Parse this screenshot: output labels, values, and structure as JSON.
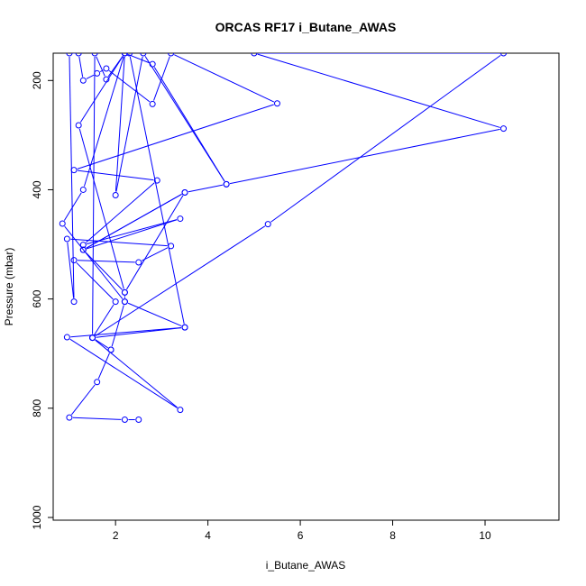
{
  "chart_data": {
    "type": "line",
    "title": "ORCAS RF17 i_Butane_AWAS",
    "xlabel": "i_Butane_AWAS",
    "ylabel": "Pressure (mbar)",
    "xlim": [
      0.65,
      11.6
    ],
    "ylim": [
      1005,
      150
    ],
    "y_reversed": true,
    "x_ticks": [
      2,
      4,
      6,
      8,
      10
    ],
    "y_ticks": [
      200,
      400,
      600,
      800,
      1000
    ],
    "grid": false,
    "legend": "none",
    "color": "#0000ff",
    "marker": "open-circle",
    "series": [
      {
        "points": [
          [
            2.5,
            821
          ],
          [
            2.2,
            821
          ],
          [
            1.0,
            817
          ],
          [
            1.6,
            752
          ],
          [
            1.9,
            693
          ],
          [
            1.5,
            671
          ],
          [
            3.5,
            652
          ],
          [
            0.95,
            670
          ],
          [
            3.4,
            803
          ],
          [
            1.5,
            671
          ],
          [
            5.3,
            463
          ],
          [
            10.4,
            150
          ],
          [
            5.0,
            150
          ],
          [
            10.4,
            288
          ],
          [
            4.4,
            390
          ],
          [
            3.5,
            405
          ],
          [
            1.3,
            510
          ],
          [
            3.4,
            453
          ],
          [
            1.3,
            501
          ],
          [
            2.9,
            383
          ],
          [
            1.1,
            364
          ],
          [
            5.5,
            242
          ],
          [
            3.2,
            150
          ],
          [
            2.8,
            243
          ],
          [
            1.8,
            178
          ],
          [
            1.6,
            187
          ],
          [
            1.3,
            200
          ],
          [
            1.2,
            150
          ],
          [
            1.0,
            150
          ],
          [
            1.1,
            605
          ],
          [
            0.95,
            490
          ],
          [
            3.2,
            503
          ],
          [
            2.5,
            533
          ],
          [
            1.1,
            529
          ],
          [
            2.0,
            605
          ],
          [
            1.5,
            671
          ],
          [
            1.55,
            150
          ],
          [
            1.8,
            198
          ],
          [
            2.2,
            150
          ],
          [
            2.8,
            170
          ],
          [
            4.4,
            390
          ],
          [
            2.6,
            150
          ],
          [
            2.0,
            410
          ],
          [
            2.2,
            150
          ],
          [
            2.3,
            150
          ],
          [
            3.5,
            652
          ],
          [
            2.2,
            605
          ],
          [
            0.85,
            462
          ],
          [
            1.3,
            400
          ],
          [
            2.2,
            150
          ],
          [
            1.2,
            282
          ],
          [
            2.2,
            588
          ],
          [
            1.3,
            510
          ],
          [
            3.5,
            405
          ],
          [
            2.2,
            588
          ],
          [
            2.2,
            605
          ],
          [
            1.9,
            693
          ]
        ]
      }
    ]
  }
}
